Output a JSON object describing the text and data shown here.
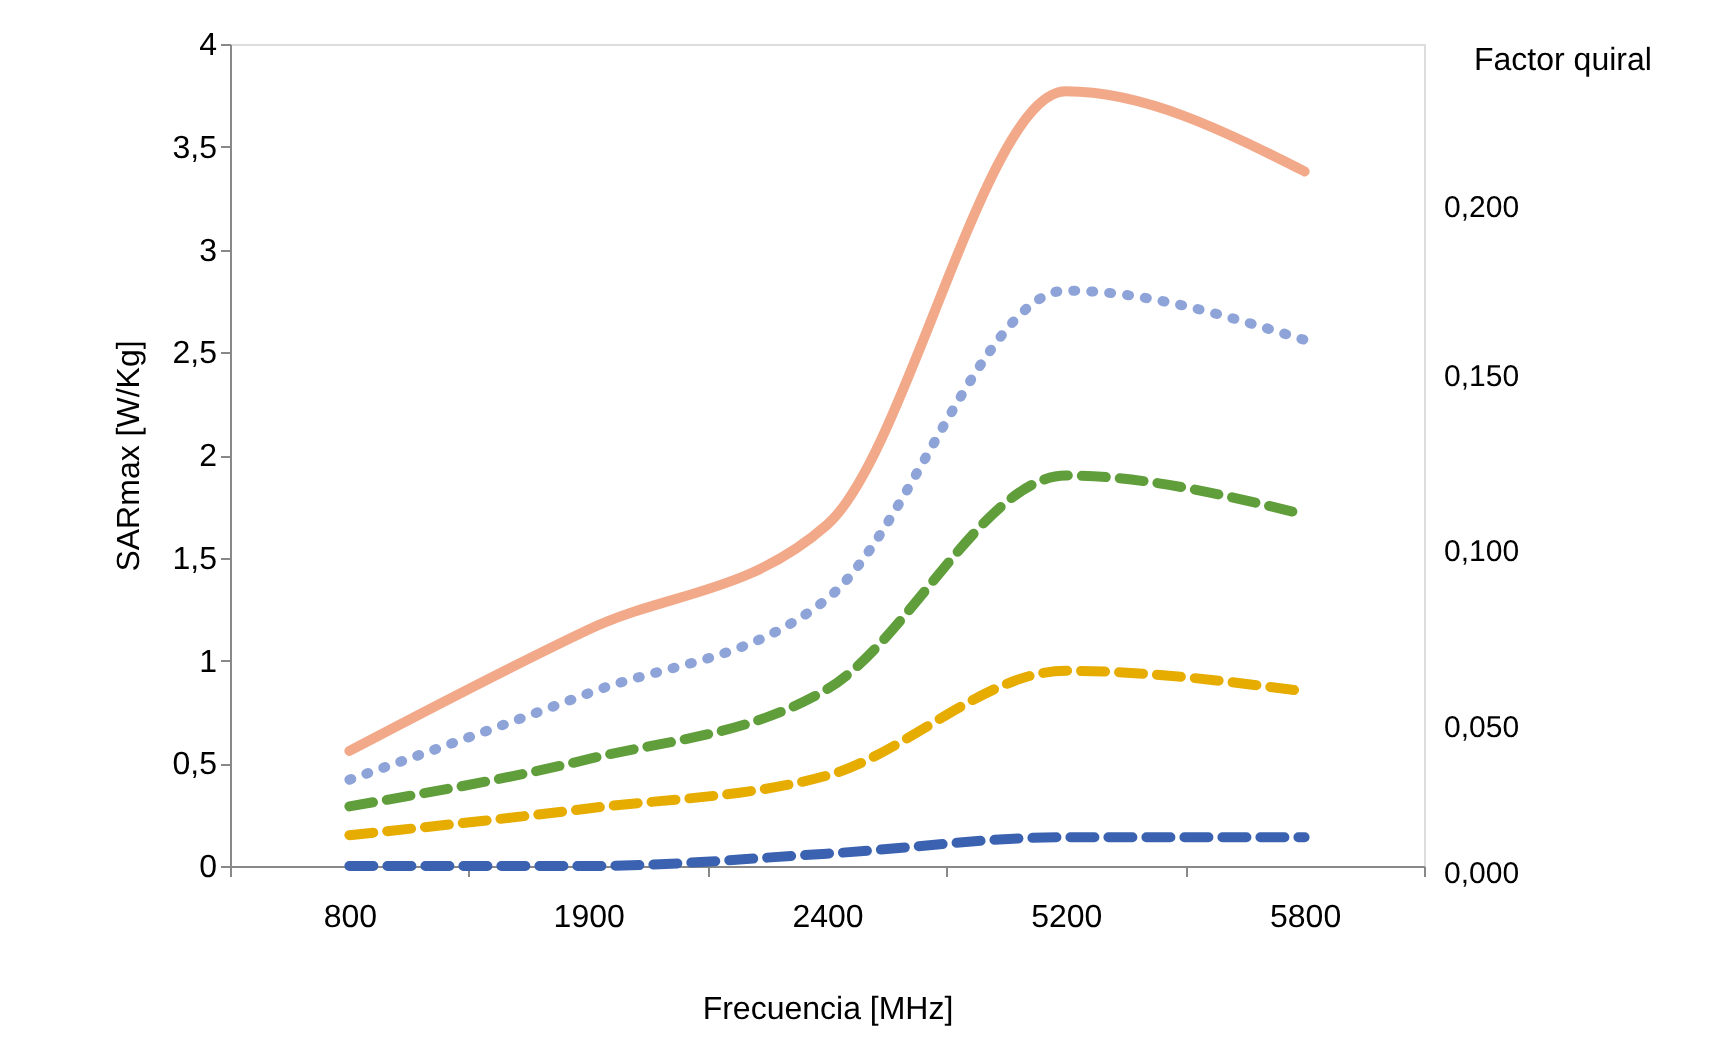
{
  "chart_data": {
    "type": "line",
    "xlabel": "Frecuencia  [MHz]",
    "ylabel": "SARmax [W/Kg]",
    "legend_title": "Factor quiral",
    "categories": [
      "800",
      "1900",
      "2400",
      "5200",
      "5800"
    ],
    "series": [
      {
        "name": "0,200",
        "color": "#f2a98a",
        "line_style": "solid",
        "values": [
          0.56,
          1.15,
          1.66,
          3.77,
          3.38
        ]
      },
      {
        "name": "0,150",
        "color": "#8ea3d8",
        "line_style": "dotted",
        "values": [
          0.42,
          0.84,
          1.3,
          2.8,
          2.56
        ]
      },
      {
        "name": "0,100",
        "color": "#5f9e3a",
        "line_style": "dashed",
        "values": [
          0.29,
          0.52,
          0.86,
          1.9,
          1.71
        ]
      },
      {
        "name": "0,050",
        "color": "#e6ac00",
        "line_style": "dashed",
        "values": [
          0.15,
          0.28,
          0.44,
          0.95,
          0.85
        ]
      },
      {
        "name": "0,000",
        "color": "#3a62b0",
        "line_style": "dashed",
        "values": [
          0.0,
          0.0,
          0.06,
          0.14,
          0.14
        ]
      }
    ],
    "ylim": [
      0,
      4
    ],
    "yticks": [
      0,
      {
        "value": 0.5,
        "label": "0,5"
      },
      1,
      {
        "value": 1.5,
        "label": "1,5"
      },
      2,
      {
        "value": 2.5,
        "label": "2,5"
      },
      3,
      {
        "value": 3.5,
        "label": "3,5"
      },
      4
    ],
    "grid": false
  }
}
